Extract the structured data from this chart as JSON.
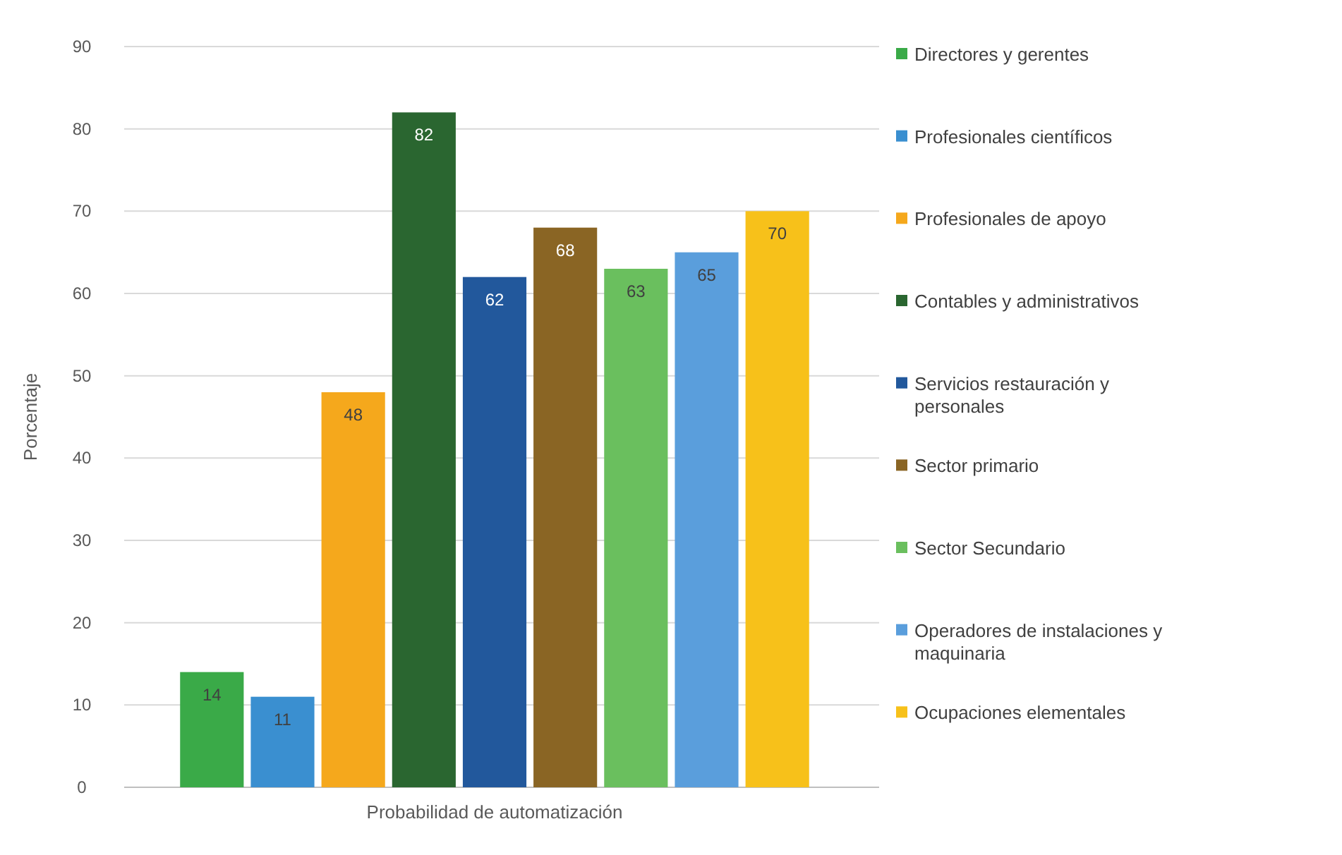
{
  "chart_data": {
    "type": "bar",
    "ylabel": "Porcentaje",
    "categories": [
      "Probabilidad de automatización"
    ],
    "series": [
      {
        "name": "Directores y gerentes",
        "color": "#3aaa48",
        "values": [
          14
        ]
      },
      {
        "name": "Profesionales científicos",
        "color": "#3a8fd0",
        "values": [
          11
        ]
      },
      {
        "name": "Profesionales de apoyo",
        "color": "#f5a81c",
        "values": [
          48
        ]
      },
      {
        "name": "Contables y administrativos",
        "color": "#2a6630",
        "values": [
          82
        ]
      },
      {
        "name": "Servicios restauración y personales",
        "color": "#22589c",
        "values": [
          62
        ]
      },
      {
        "name": "Sector primario",
        "color": "#8a6524",
        "values": [
          68
        ]
      },
      {
        "name": "Sector Secundario",
        "color": "#6abf5e",
        "values": [
          63
        ]
      },
      {
        "name": "Operadores de instalaciones y maquinaria",
        "color": "#5a9edc",
        "values": [
          65
        ]
      },
      {
        "name": "Ocupaciones elementales",
        "color": "#f7c11a",
        "values": [
          70
        ]
      }
    ],
    "ylim": [
      0,
      90
    ],
    "yticks": [
      0,
      10,
      20,
      30,
      40,
      50,
      60,
      70,
      80,
      90
    ],
    "grid": "y",
    "legend": "right",
    "data_labels": true
  }
}
